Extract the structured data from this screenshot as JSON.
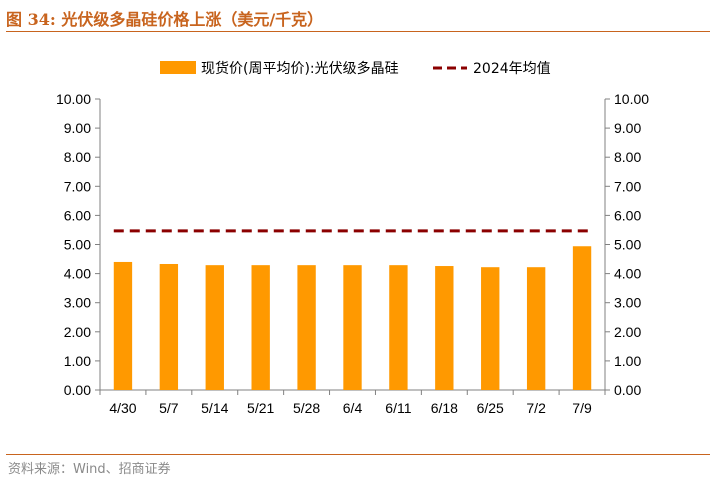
{
  "header": {
    "title": "图 34:  光伏级多晶硅价格上涨（美元/千克）"
  },
  "footer": {
    "source": "资料来源：Wind、招商证券"
  },
  "colors": {
    "accent": "#c8641e",
    "bar": "#ff9900",
    "avg_line": "#8b0000"
  },
  "chart_data": {
    "type": "bar",
    "categories": [
      "4/30",
      "5/7",
      "5/14",
      "5/21",
      "5/28",
      "6/4",
      "6/11",
      "6/18",
      "6/25",
      "7/2",
      "7/9"
    ],
    "series": [
      {
        "name": "现货价(周平均价):光伏级多晶硅",
        "type": "bar",
        "values": [
          4.4,
          4.33,
          4.29,
          4.29,
          4.29,
          4.29,
          4.29,
          4.26,
          4.22,
          4.22,
          4.94
        ]
      },
      {
        "name": "2024年均值",
        "type": "line-dashed",
        "value": 5.47
      }
    ],
    "ylim": [
      0,
      10
    ],
    "yticks": [
      "0.00",
      "1.00",
      "2.00",
      "3.00",
      "4.00",
      "5.00",
      "6.00",
      "7.00",
      "8.00",
      "9.00",
      "10.00"
    ],
    "secondary_yticks": [
      "0.00",
      "1.00",
      "2.00",
      "3.00",
      "4.00",
      "5.00",
      "6.00",
      "7.00",
      "8.00",
      "9.00",
      "10.00"
    ],
    "legend_position": "top-center",
    "grid": false
  }
}
